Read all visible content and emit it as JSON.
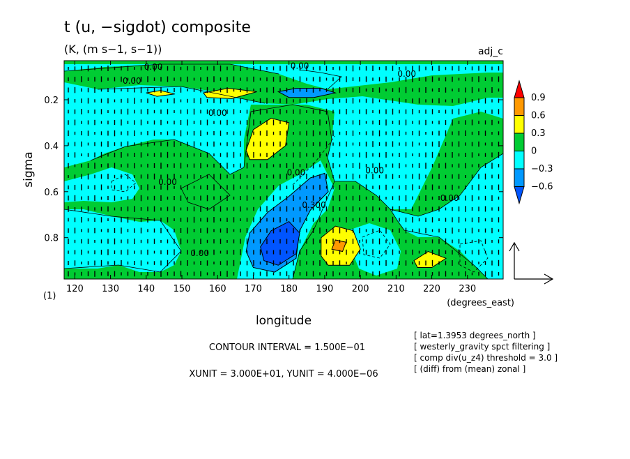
{
  "chart_data": {
    "type": "heatmap",
    "title": "t (u, −sigdot) composite",
    "subtitle": "(K, (m s−1, s−1))",
    "tag": "adj_c",
    "xlabel": "longitude",
    "xunits": "(degrees_east)",
    "ylabel": "sigma",
    "corner_label": "(1)",
    "xlim": [
      117,
      240
    ],
    "ylim": [
      0.03,
      0.98
    ],
    "x_ticks": [
      120,
      130,
      140,
      150,
      160,
      170,
      180,
      190,
      200,
      210,
      220,
      230
    ],
    "y_ticks": [
      0.2,
      0.4,
      0.6,
      0.8
    ],
    "y_tick_labels": [
      "0.2",
      "0.4",
      "0.6",
      "0.8"
    ],
    "colorbar": {
      "labels": [
        "0.9",
        "0.6",
        "0.3",
        "0",
        "−0.3",
        "−0.6"
      ],
      "colors": [
        "#ff9900",
        "#ffff00",
        "#00cc33",
        "#00ffff",
        "#0099ff"
      ],
      "overflow_high": "#ff0000",
      "overflow_low": "#0055ff"
    },
    "contour_labels": [
      {
        "x": 142,
        "y": 0.07,
        "text": "0.00"
      },
      {
        "x": 183,
        "y": 0.065,
        "text": "0.00"
      },
      {
        "x": 213,
        "y": 0.1,
        "text": "0.00"
      },
      {
        "x": 160,
        "y": 0.27,
        "text": "0.00"
      },
      {
        "x": 146,
        "y": 0.57,
        "text": "0.00"
      },
      {
        "x": 182,
        "y": 0.53,
        "text": "0.00"
      },
      {
        "x": 204,
        "y": 0.52,
        "text": "0.00"
      },
      {
        "x": 187,
        "y": 0.67,
        "text": "0.300"
      },
      {
        "x": 225,
        "y": 0.64,
        "text": "0.00"
      },
      {
        "x": 155,
        "y": 0.88,
        "text": "0.00"
      },
      {
        "x": 136,
        "y": 0.13,
        "text": "0.00"
      }
    ],
    "regions": [
      {
        "level": 0.3,
        "color": "#ffff00",
        "points": [
          [
            168,
            0.42
          ],
          [
            170,
            0.33
          ],
          [
            175,
            0.28
          ],
          [
            180,
            0.3
          ],
          [
            179,
            0.4
          ],
          [
            174,
            0.46
          ],
          [
            169,
            0.46
          ]
        ]
      },
      {
        "level": 0.3,
        "color": "#ffff00",
        "points": [
          [
            189,
            0.88
          ],
          [
            189,
            0.8
          ],
          [
            193,
            0.75
          ],
          [
            198,
            0.77
          ],
          [
            200,
            0.85
          ],
          [
            197,
            0.92
          ],
          [
            191,
            0.92
          ]
        ]
      },
      {
        "level": 0.6,
        "color": "#ff9900",
        "points": [
          [
            192,
            0.85
          ],
          [
            193,
            0.81
          ],
          [
            196,
            0.82
          ],
          [
            195,
            0.86
          ]
        ]
      },
      {
        "level": 0.3,
        "color": "#ffff00",
        "points": [
          [
            215,
            0.9
          ],
          [
            219,
            0.86
          ],
          [
            224,
            0.89
          ],
          [
            220,
            0.93
          ],
          [
            216,
            0.93
          ]
        ]
      },
      {
        "level": 0.3,
        "color": "#ffff00",
        "points": [
          [
            156,
            0.17
          ],
          [
            163,
            0.15
          ],
          [
            171,
            0.165
          ],
          [
            164,
            0.195
          ],
          [
            157,
            0.19
          ]
        ]
      },
      {
        "level": 0.3,
        "color": "#ffff00",
        "points": [
          [
            140,
            0.17
          ],
          [
            144,
            0.16
          ],
          [
            148,
            0.175
          ],
          [
            143,
            0.185
          ]
        ]
      },
      {
        "level": -0.3,
        "color": "#0099ff",
        "points": [
          [
            169,
            0.78
          ],
          [
            174,
            0.69
          ],
          [
            180,
            0.62
          ],
          [
            186,
            0.54
          ],
          [
            190,
            0.52
          ],
          [
            191,
            0.6
          ],
          [
            186,
            0.68
          ],
          [
            183,
            0.77
          ],
          [
            182,
            0.89
          ],
          [
            176,
            0.95
          ],
          [
            170,
            0.93
          ],
          [
            168,
            0.86
          ]
        ]
      },
      {
        "level": -0.6,
        "color": "#0055ff",
        "points": [
          [
            172,
            0.84
          ],
          [
            175,
            0.77
          ],
          [
            180,
            0.73
          ],
          [
            183,
            0.78
          ],
          [
            182,
            0.87
          ],
          [
            177,
            0.92
          ],
          [
            173,
            0.9
          ]
        ]
      },
      {
        "level": -0.3,
        "color": "#0099ff",
        "points": [
          [
            177,
            0.165
          ],
          [
            182,
            0.15
          ],
          [
            189,
            0.15
          ],
          [
            193,
            0.17
          ],
          [
            187,
            0.19
          ],
          [
            180,
            0.19
          ]
        ]
      }
    ],
    "vector_reference": {
      "label": "XUNIT = 3.000E+01, YUNIT = 4.000E−06"
    },
    "contour_interval": "CONTOUR INTERVAL = 1.500E−01",
    "notes": [
      "[ lat=1.3953 degrees_north ]",
      "[ westerly_gravity spct filtering ]",
      "[ comp div(u_z4) threshold = 3.0 ]",
      "[ (diff) from (mean) zonal ]"
    ]
  },
  "colors": {
    "background": "#ffffff",
    "positive_low": "#00cc33",
    "negative_low": "#00ffff"
  }
}
